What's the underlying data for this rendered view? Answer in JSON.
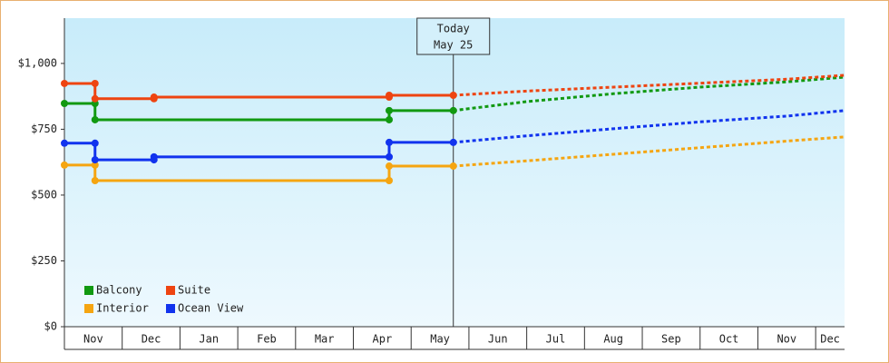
{
  "chart_data": {
    "type": "line",
    "ylim": [
      0,
      1172
    ],
    "yticks": [
      {
        "value": 0,
        "label": "$0"
      },
      {
        "value": 250,
        "label": "$250"
      },
      {
        "value": 500,
        "label": "$500"
      },
      {
        "value": 750,
        "label": "$750"
      },
      {
        "value": 1000,
        "label": "$1,000"
      }
    ],
    "xlim": [
      0,
      13.5
    ],
    "xticks": [
      {
        "value": 0,
        "label": "Nov"
      },
      {
        "value": 1,
        "label": "Dec"
      },
      {
        "value": 2,
        "label": "Jan"
      },
      {
        "value": 3,
        "label": "Feb"
      },
      {
        "value": 4,
        "label": "Mar"
      },
      {
        "value": 5,
        "label": "Apr"
      },
      {
        "value": 6,
        "label": "May"
      },
      {
        "value": 7,
        "label": "Jun"
      },
      {
        "value": 8,
        "label": "Jul"
      },
      {
        "value": 9,
        "label": "Aug"
      },
      {
        "value": 10,
        "label": "Sep"
      },
      {
        "value": 11,
        "label": "Oct"
      },
      {
        "value": 12,
        "label": "Nov"
      },
      {
        "value": 13,
        "label": "Dec"
      }
    ],
    "annotation": {
      "x": 6.73,
      "lines": [
        "Today",
        "May 25"
      ]
    },
    "legend": "bottom-left",
    "series": [
      {
        "name": "Balcony",
        "color": "#119911",
        "x": [
          0,
          0.53,
          0.53,
          5.62,
          5.62,
          6.73
        ],
        "values": [
          848,
          848,
          786,
          786,
          821,
          821
        ],
        "forecast_x": [
          6.73,
          8,
          9.5,
          11,
          12.5,
          13.5
        ],
        "forecast_values": [
          821,
          855,
          885,
          910,
          930,
          948
        ]
      },
      {
        "name": "Suite",
        "color": "#ee4411",
        "x": [
          0,
          0.53,
          0.53,
          1.55,
          1.55,
          5.62,
          5.62,
          6.73
        ],
        "values": [
          924,
          924,
          866,
          866,
          872,
          872,
          879,
          879
        ],
        "forecast_x": [
          6.73,
          8,
          9.5,
          11,
          12.5,
          13.5
        ],
        "forecast_values": [
          879,
          895,
          910,
          925,
          940,
          955
        ]
      },
      {
        "name": "Interior",
        "color": "#f5a511",
        "x": [
          0,
          0.53,
          0.53,
          5.62,
          5.62,
          6.73
        ],
        "values": [
          614,
          614,
          555,
          555,
          610,
          610
        ],
        "forecast_x": [
          6.73,
          8,
          9.5,
          11,
          12.5,
          13.5
        ],
        "forecast_values": [
          610,
          630,
          655,
          680,
          705,
          721
        ]
      },
      {
        "name": "Ocean View",
        "color": "#1133ee",
        "x": [
          0,
          0.53,
          0.53,
          1.55,
          1.55,
          5.62,
          5.62,
          6.73
        ],
        "values": [
          697,
          697,
          634,
          634,
          645,
          645,
          700,
          700
        ],
        "forecast_x": [
          6.73,
          8,
          9.5,
          11,
          12.5,
          13.5
        ],
        "forecast_values": [
          700,
          725,
          752,
          778,
          800,
          821
        ]
      }
    ]
  }
}
